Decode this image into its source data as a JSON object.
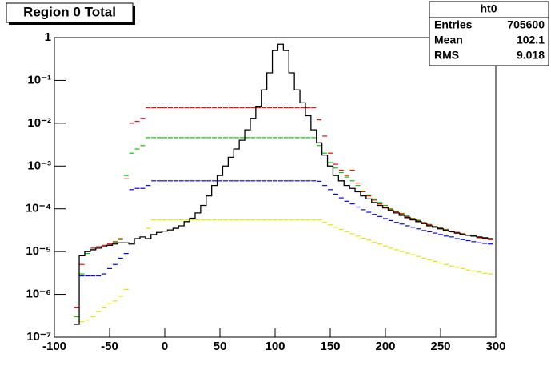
{
  "chart_data": {
    "type": "histogram",
    "title": "Region 0 Total",
    "stats": {
      "title": "ht0",
      "rows": [
        {
          "label": "Entries",
          "value": 705600
        },
        {
          "label": "Mean",
          "value": 102.1
        },
        {
          "label": "RMS",
          "value": 9.018
        }
      ]
    },
    "log_y": true,
    "xlim": [
      -100,
      300
    ],
    "xticks": [
      -100,
      -50,
      0,
      50,
      100,
      150,
      200,
      250,
      300
    ],
    "ylim": [
      1e-07,
      1
    ],
    "yticks": [
      {
        "value": 1e-07,
        "label": "10⁻⁷"
      },
      {
        "value": 1e-06,
        "label": "10⁻⁶"
      },
      {
        "value": 1e-05,
        "label": "10⁻⁵"
      },
      {
        "value": 0.0001,
        "label": "10⁻⁴"
      },
      {
        "value": 0.001,
        "label": "10⁻³"
      },
      {
        "value": 0.01,
        "label": "10⁻²"
      },
      {
        "value": 0.1,
        "label": "10⁻¹"
      },
      1
    ],
    "x": [
      -80,
      -75,
      -70,
      -65,
      -60,
      -55,
      -50,
      -45,
      -40,
      -35,
      -30,
      -25,
      -20,
      -15,
      -10,
      -5,
      0,
      5,
      10,
      15,
      20,
      25,
      30,
      35,
      40,
      45,
      50,
      55,
      60,
      65,
      70,
      75,
      80,
      85,
      90,
      95,
      100,
      105,
      110,
      115,
      120,
      125,
      130,
      135,
      140,
      145,
      150,
      155,
      160,
      165,
      170,
      175,
      180,
      185,
      190,
      195,
      200,
      205,
      210,
      215,
      220,
      225,
      230,
      235,
      240,
      245,
      250,
      255,
      260,
      265,
      270,
      275,
      280,
      285,
      290,
      295
    ],
    "series": [
      {
        "style": "step",
        "color": "#000000",
        "values": [
          2e-07,
          8e-06,
          1e-05,
          1.1e-05,
          1.2e-05,
          1.3e-05,
          1.4e-05,
          1.5e-05,
          1.6e-05,
          1.6e-05,
          1.5e-05,
          2e-05,
          2.2e-05,
          2e-05,
          2.5e-05,
          2.8e-05,
          3e-05,
          3.2e-05,
          3.5e-05,
          4e-05,
          5e-05,
          6e-05,
          8e-05,
          0.00012,
          0.0002,
          0.00035,
          0.0006,
          0.001,
          0.0016,
          0.0025,
          0.004,
          0.007,
          0.013,
          0.025,
          0.06,
          0.15,
          0.5,
          0.7,
          0.5,
          0.15,
          0.06,
          0.03,
          0.015,
          0.007,
          0.0035,
          0.0018,
          0.001,
          0.0006,
          0.00045,
          0.00035,
          0.0003,
          0.00025,
          0.0002,
          0.00017,
          0.00014,
          0.00012,
          0.000105,
          9e-05,
          8e-05,
          7e-05,
          6.2e-05,
          5.5e-05,
          5e-05,
          4.5e-05,
          4e-05,
          3.7e-05,
          3.4e-05,
          3.1e-05,
          2.9e-05,
          2.7e-05,
          2.5e-05,
          2.4e-05,
          2.3e-05,
          2.2e-05,
          2.1e-05,
          2e-05
        ]
      },
      {
        "style": "points",
        "color": "#ff0000",
        "values": [
          5e-07,
          5e-06,
          1e-05,
          1.2e-05,
          1.3e-05,
          1.4e-05,
          1.5e-05,
          1.7e-05,
          2e-05,
          0.0005,
          0.01,
          0.011,
          0.013,
          0.023,
          0.023,
          0.023,
          0.023,
          0.023,
          0.023,
          0.023,
          0.023,
          0.023,
          0.023,
          0.023,
          0.023,
          0.023,
          0.023,
          0.023,
          0.023,
          0.023,
          0.023,
          0.023,
          0.023,
          0.023,
          0.023,
          0.023,
          0.023,
          0.023,
          0.023,
          0.023,
          0.023,
          0.023,
          0.023,
          0.023,
          0.012,
          0.005,
          0.002,
          0.0011,
          0.0008,
          0.0006,
          0.0008,
          0.0004,
          0.00025,
          0.0002,
          0.00016,
          0.00013,
          0.00011,
          9.5e-05,
          8.5e-05,
          7.5e-05,
          6.5e-05,
          5.8e-05,
          5.2e-05,
          4.7e-05,
          4.2e-05,
          3.8e-05,
          3.5e-05,
          3.2e-05,
          3e-05,
          2.8e-05,
          2.6e-05,
          2.4e-05,
          2.3e-05,
          2.1e-05,
          2e-05,
          1.9e-05
        ]
      },
      {
        "style": "points",
        "color": "#00cc00",
        "values": [
          3e-07,
          3e-06,
          9e-06,
          1.1e-05,
          1.2e-05,
          1.3e-05,
          1.4e-05,
          1.6e-05,
          1.9e-05,
          0.0006,
          0.002,
          0.0025,
          0.003,
          0.0046,
          0.0046,
          0.0046,
          0.0046,
          0.0046,
          0.0046,
          0.0046,
          0.0046,
          0.0046,
          0.0046,
          0.0046,
          0.0046,
          0.0046,
          0.0046,
          0.0046,
          0.0046,
          0.0046,
          0.0046,
          0.0046,
          0.0046,
          0.0046,
          0.0046,
          0.0046,
          0.0046,
          0.0046,
          0.0046,
          0.0046,
          0.0046,
          0.0046,
          0.0046,
          0.0046,
          0.003,
          0.002,
          0.0012,
          0.0009,
          0.0007,
          0.00055,
          0.00045,
          0.00035,
          0.00026,
          0.00021,
          0.00017,
          0.00014,
          0.00012,
          0.0001,
          8.8e-05,
          7.8e-05,
          6.8e-05,
          6e-05,
          5.4e-05,
          4.8e-05,
          4.3e-05,
          3.9e-05,
          3.6e-05,
          3.3e-05,
          3e-05,
          2.8e-05,
          2.6e-05,
          2.4e-05,
          2.3e-05,
          2.1e-05,
          2e-05,
          1.9e-05
        ]
      },
      {
        "style": "points",
        "color": "#0000ff",
        "values": [
          null,
          2.7e-06,
          2.7e-06,
          2.7e-06,
          2.7e-06,
          3e-06,
          4e-06,
          5e-06,
          7e-06,
          9e-06,
          0.00028,
          0.0003,
          0.0003,
          0.00035,
          0.00045,
          0.00045,
          0.00045,
          0.00045,
          0.00045,
          0.00045,
          0.00045,
          0.00045,
          0.00045,
          0.00045,
          0.00045,
          0.00045,
          0.00045,
          0.00045,
          0.00045,
          0.00045,
          0.00045,
          0.00045,
          0.00045,
          0.00045,
          0.00045,
          0.00045,
          0.00045,
          0.00045,
          0.00045,
          0.00045,
          0.00045,
          0.00045,
          0.00045,
          0.00045,
          0.00044,
          0.00035,
          0.00028,
          0.00022,
          0.00018,
          0.00015,
          0.00013,
          0.00011,
          9.5e-05,
          8.3e-05,
          7.4e-05,
          6.6e-05,
          5.9e-05,
          5.3e-05,
          4.8e-05,
          4.4e-05,
          4e-05,
          3.7e-05,
          3.4e-05,
          3.1e-05,
          2.9e-05,
          2.7e-05,
          2.5e-05,
          2.3e-05,
          2.2e-05,
          2e-05,
          1.9e-05,
          1.8e-05,
          1.7e-05,
          1.6e-05,
          1.55e-05,
          1.5e-05
        ]
      },
      {
        "style": "points",
        "color": "#e6e600",
        "values": [
          2e-07,
          2.3e-07,
          2.5e-07,
          3e-07,
          4e-07,
          5e-07,
          6e-07,
          7e-07,
          9e-07,
          1.3e-06,
          null,
          null,
          null,
          3.5e-05,
          5.5e-05,
          5.5e-05,
          5.5e-05,
          5.5e-05,
          5.5e-05,
          5.5e-05,
          5.5e-05,
          5.5e-05,
          5.5e-05,
          5.5e-05,
          5.5e-05,
          5.5e-05,
          5.5e-05,
          5.5e-05,
          5.5e-05,
          5.5e-05,
          5.5e-05,
          5.5e-05,
          5.5e-05,
          5.5e-05,
          5.5e-05,
          5.5e-05,
          5.5e-05,
          5.5e-05,
          5.5e-05,
          5.5e-05,
          5.5e-05,
          5.5e-05,
          5.5e-05,
          5.5e-05,
          5.5e-05,
          4.8e-05,
          4.2e-05,
          3.7e-05,
          3.3e-05,
          2.9e-05,
          2.6e-05,
          2.3e-05,
          2.05e-05,
          1.85e-05,
          1.65e-05,
          1.5e-05,
          1.35e-05,
          1.2e-05,
          1.1e-05,
          1e-05,
          9.2e-06,
          8.4e-06,
          7.7e-06,
          7e-06,
          6.4e-06,
          5.9e-06,
          5.4e-06,
          5e-06,
          4.6e-06,
          4.3e-06,
          4e-06,
          3.7e-06,
          3.5e-06,
          3.3e-06,
          3.1e-06,
          3e-06
        ]
      }
    ]
  }
}
